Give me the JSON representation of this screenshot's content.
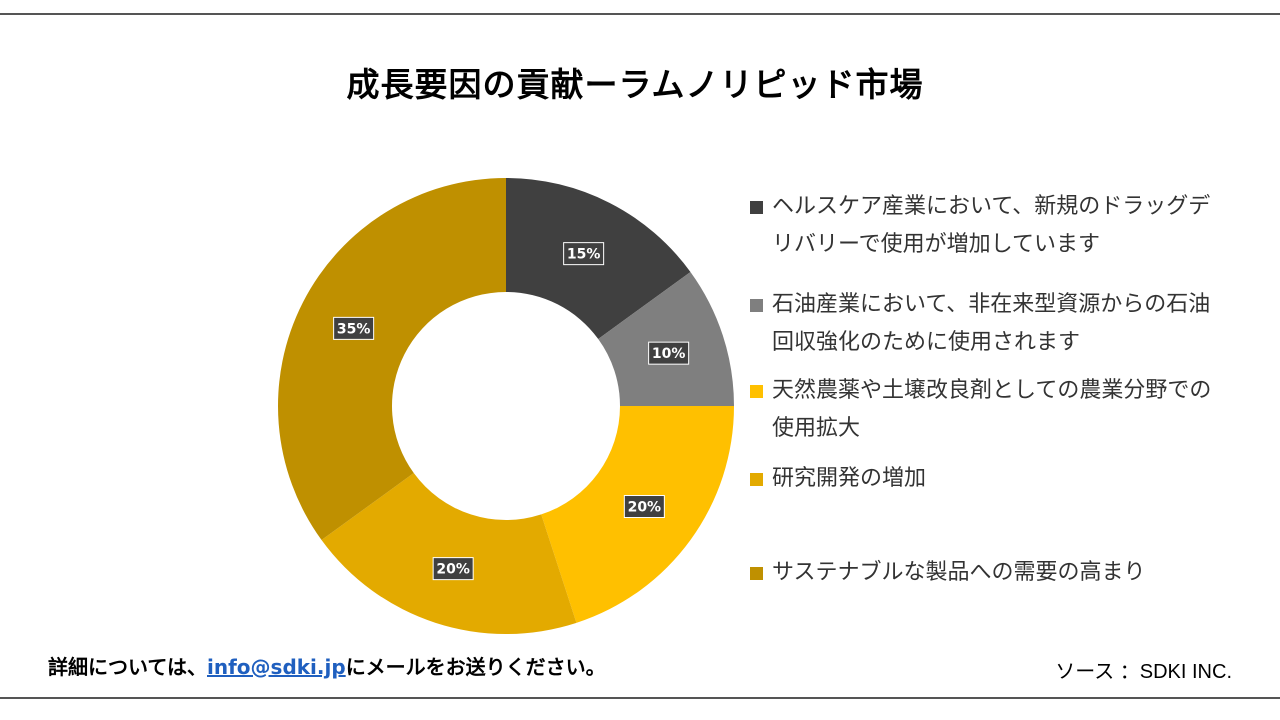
{
  "header": {
    "title": "成長要因の貢献ーラムノリピッド市場"
  },
  "chart_data": {
    "type": "pie",
    "title": "成長要因の貢献ーラムノリピッド市場",
    "categories": [
      "ヘルスケア産業において、新規のドラッグデリバリーで使用が増加しています",
      "石油産業において、非在来型資源からの石油回収強化のために使用されます",
      "天然農薬や土壌改良剤としての農業分野での使用拡大",
      "研究開発の増加",
      "サステナブルな製品への需要の高まり"
    ],
    "values": [
      15,
      10,
      20,
      20,
      35
    ],
    "labels": [
      "15%",
      "10%",
      "20%",
      "20%",
      "35%"
    ],
    "colors": [
      "#404040",
      "#7f7f7f",
      "#ffc000",
      "#e3aa00",
      "#bf9000"
    ],
    "legend_position": "right"
  },
  "footer": {
    "note_prefix": "詳細については、",
    "email": "info@sdki.jp",
    "note_suffix": "にメールをお送りください。",
    "source": "ソース ：SDKI INC."
  }
}
